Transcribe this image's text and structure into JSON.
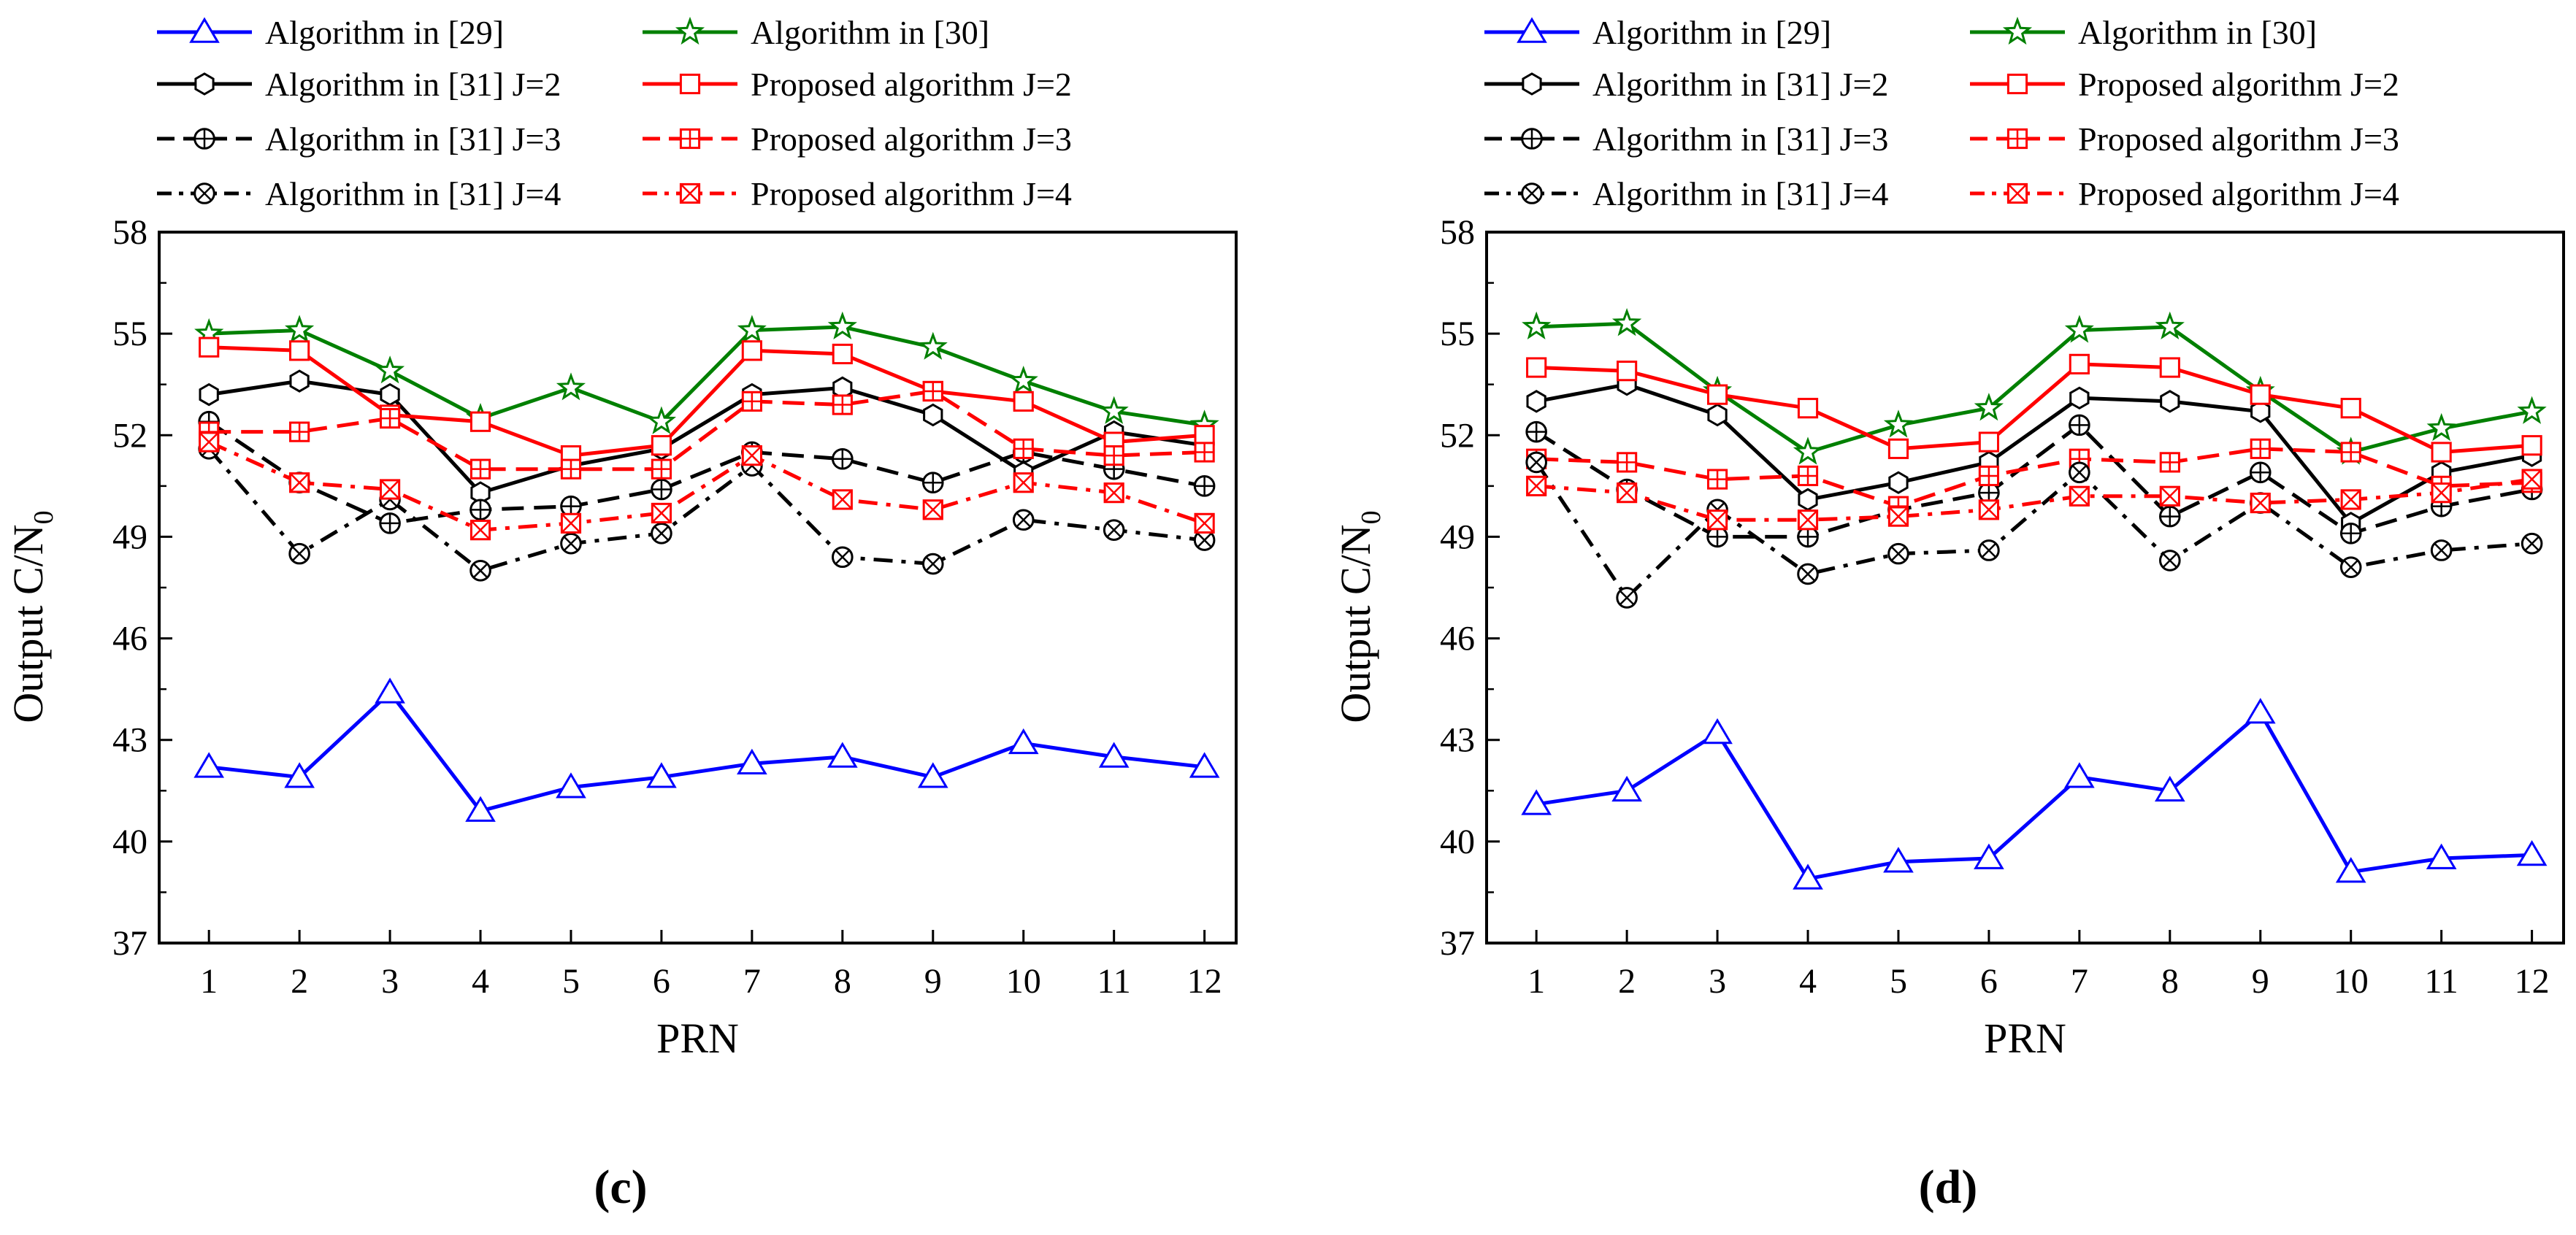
{
  "chart_data": [
    {
      "type": "line",
      "panel_label": "(c)",
      "xlabel": "PRN",
      "ylabel": "Output C/N",
      "ylabel_subscript": "0",
      "ylim": [
        37,
        58
      ],
      "yticks": [
        37,
        40,
        43,
        46,
        49,
        52,
        55,
        58
      ],
      "xticks": [
        1,
        2,
        3,
        4,
        5,
        6,
        7,
        8,
        9,
        10,
        11,
        12
      ],
      "x": [
        1,
        2,
        3,
        4,
        5,
        6,
        7,
        8,
        9,
        10,
        11,
        12
      ],
      "series": [
        {
          "name": "Algorithm in [29]",
          "color": "#0000ff",
          "dash": "solid",
          "marker": "triangle",
          "values": [
            42.2,
            41.9,
            44.4,
            40.9,
            41.6,
            41.9,
            42.3,
            42.5,
            41.9,
            42.9,
            42.5,
            42.2
          ]
        },
        {
          "name": "Algorithm in [30]",
          "color": "#008000",
          "dash": "solid",
          "marker": "star",
          "values": [
            55.0,
            55.1,
            53.9,
            52.5,
            53.4,
            52.4,
            55.1,
            55.2,
            54.6,
            53.6,
            52.7,
            52.3
          ]
        },
        {
          "name": "Algorithm in [31] J=2",
          "color": "#000000",
          "dash": "solid",
          "marker": "hexagon",
          "values": [
            53.2,
            53.6,
            53.2,
            50.3,
            51.1,
            51.6,
            53.2,
            53.4,
            52.6,
            50.9,
            52.1,
            51.7
          ]
        },
        {
          "name": "Proposed  algorithm J=2",
          "color": "#ff0000",
          "dash": "solid",
          "marker": "square",
          "values": [
            54.6,
            54.5,
            52.6,
            52.4,
            51.4,
            51.7,
            54.5,
            54.4,
            53.3,
            53.0,
            51.8,
            52.0
          ]
        },
        {
          "name": "Algorithm in [31] J=3",
          "color": "#000000",
          "dash": "dash",
          "marker": "circle-plus",
          "values": [
            52.4,
            50.6,
            49.4,
            49.8,
            49.9,
            50.4,
            51.5,
            51.3,
            50.6,
            51.5,
            51.0,
            50.5
          ]
        },
        {
          "name": "Proposed  algorithm J=3",
          "color": "#ff0000",
          "dash": "dash",
          "marker": "square-plus",
          "values": [
            52.1,
            52.1,
            52.5,
            51.0,
            51.0,
            51.0,
            53.0,
            52.9,
            53.3,
            51.6,
            51.4,
            51.5
          ]
        },
        {
          "name": "Algorithm in [31] J=4",
          "color": "#000000",
          "dash": "dashdot",
          "marker": "circle-x",
          "values": [
            51.6,
            48.5,
            50.1,
            48.0,
            48.8,
            49.1,
            51.1,
            48.4,
            48.2,
            49.5,
            49.2,
            48.9
          ]
        },
        {
          "name": "Proposed  algorithm J=4",
          "color": "#ff0000",
          "dash": "dashdot",
          "marker": "square-x",
          "values": [
            51.8,
            50.6,
            50.4,
            49.2,
            49.4,
            49.7,
            51.4,
            50.1,
            49.8,
            50.6,
            50.3,
            49.4
          ]
        }
      ]
    },
    {
      "type": "line",
      "panel_label": "(d)",
      "xlabel": "PRN",
      "ylabel": "Output C/N",
      "ylabel_subscript": "0",
      "ylim": [
        37,
        58
      ],
      "yticks": [
        37,
        40,
        43,
        46,
        49,
        52,
        55,
        58
      ],
      "xticks": [
        1,
        2,
        3,
        4,
        5,
        6,
        7,
        8,
        9,
        10,
        11,
        12
      ],
      "x": [
        1,
        2,
        3,
        4,
        5,
        6,
        7,
        8,
        9,
        10,
        11,
        12
      ],
      "series": [
        {
          "name": "Algorithm in [29]",
          "color": "#0000ff",
          "dash": "solid",
          "marker": "triangle",
          "values": [
            41.1,
            41.5,
            43.2,
            38.9,
            39.4,
            39.5,
            41.9,
            41.5,
            43.8,
            39.1,
            39.5,
            39.6
          ]
        },
        {
          "name": "Algorithm in [30]",
          "color": "#008000",
          "dash": "solid",
          "marker": "star",
          "values": [
            55.2,
            55.3,
            53.3,
            51.5,
            52.3,
            52.8,
            55.1,
            55.2,
            53.3,
            51.5,
            52.2,
            52.7
          ]
        },
        {
          "name": "Algorithm in [31] J=2",
          "color": "#000000",
          "dash": "solid",
          "marker": "hexagon",
          "values": [
            53.0,
            53.5,
            52.6,
            50.1,
            50.6,
            51.2,
            53.1,
            53.0,
            52.7,
            49.4,
            50.9,
            51.4
          ]
        },
        {
          "name": "Proposed  algorithm J=2",
          "color": "#ff0000",
          "dash": "solid",
          "marker": "square",
          "values": [
            54.0,
            53.9,
            53.2,
            52.8,
            51.6,
            51.8,
            54.1,
            54.0,
            53.2,
            52.8,
            51.5,
            51.7
          ]
        },
        {
          "name": "Algorithm in [31] J=3",
          "color": "#000000",
          "dash": "dash",
          "marker": "circle-plus",
          "values": [
            52.1,
            50.4,
            49.0,
            49.0,
            49.8,
            50.3,
            52.3,
            49.6,
            50.9,
            49.1,
            49.9,
            50.4
          ]
        },
        {
          "name": "Proposed  algorithm J=3",
          "color": "#ff0000",
          "dash": "dash",
          "marker": "square-plus",
          "values": [
            51.3,
            51.2,
            50.7,
            50.8,
            49.9,
            50.8,
            51.3,
            51.2,
            51.6,
            51.5,
            50.5,
            50.6
          ]
        },
        {
          "name": "Algorithm in [31] J=4",
          "color": "#000000",
          "dash": "dashdot",
          "marker": "circle-x",
          "values": [
            51.2,
            47.2,
            49.8,
            47.9,
            48.5,
            48.6,
            50.9,
            48.3,
            50.0,
            48.1,
            48.6,
            48.8
          ]
        },
        {
          "name": "Proposed  algorithm J=4",
          "color": "#ff0000",
          "dash": "dashdot",
          "marker": "square-x",
          "values": [
            50.5,
            50.3,
            49.5,
            49.5,
            49.6,
            49.8,
            50.2,
            50.2,
            50.0,
            50.1,
            50.3,
            50.7
          ]
        }
      ]
    }
  ]
}
